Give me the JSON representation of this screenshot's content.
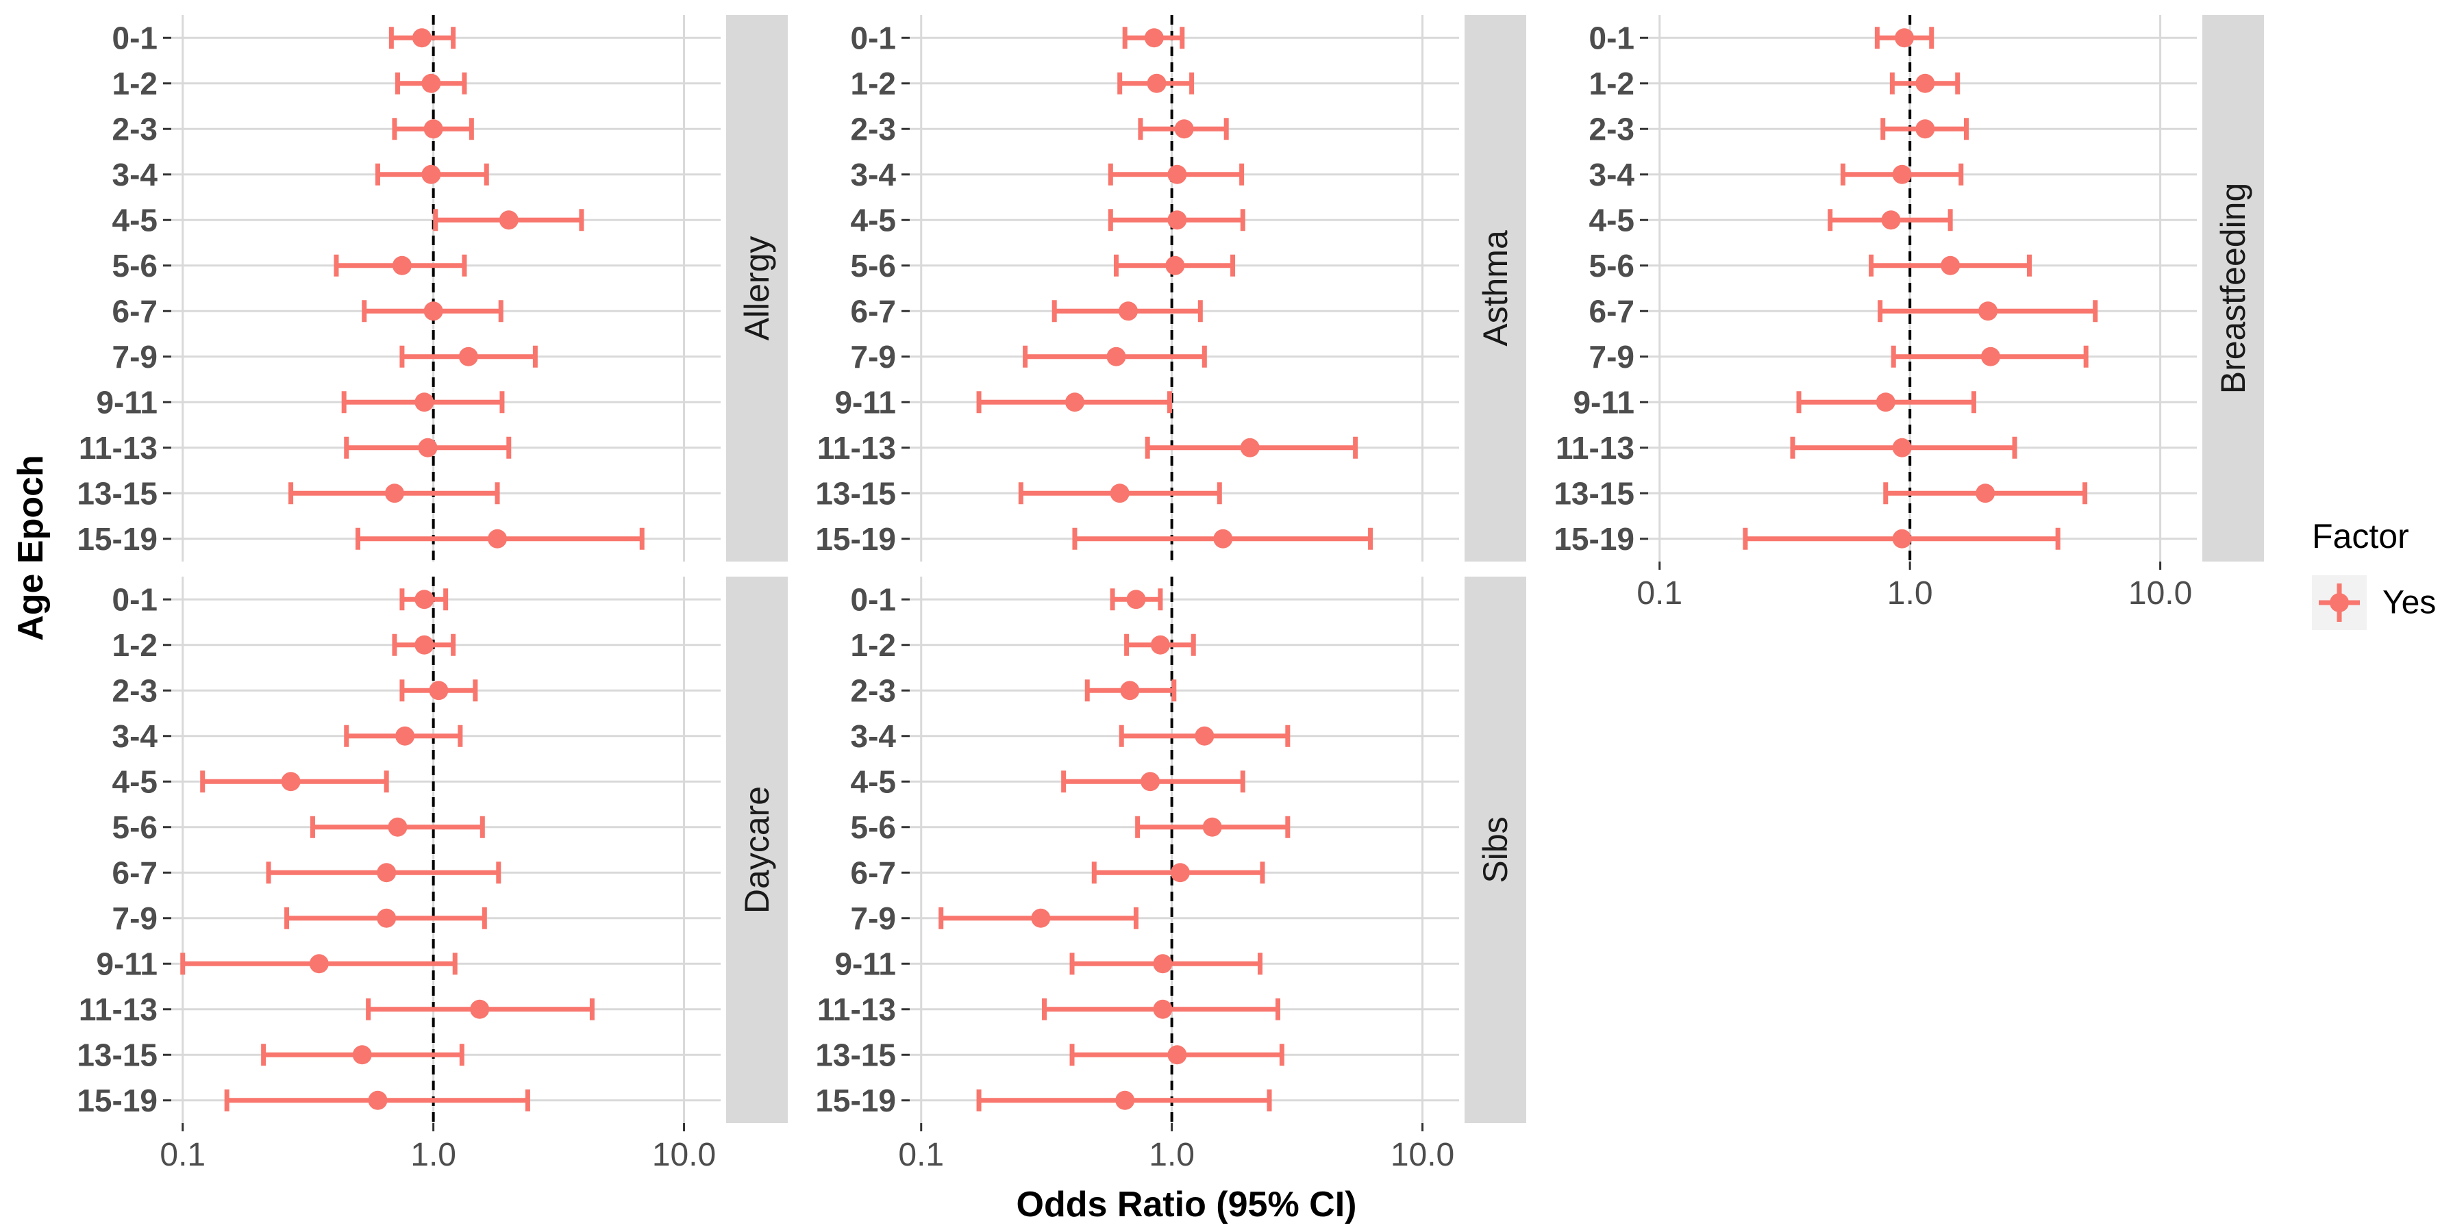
{
  "chart_data": {
    "type": "forest",
    "xlabel": "Odds Ratio (95% CI)",
    "ylabel": "Age Epoch",
    "x_scale": "log10",
    "xlim": [
      0.09,
      14
    ],
    "x_ticks": [
      0.1,
      1.0,
      10.0
    ],
    "x_tick_labels": [
      "0.1",
      "1.0",
      "10.0"
    ],
    "reference_line": 1.0,
    "categories": [
      "0-1",
      "1-2",
      "2-3",
      "3-4",
      "4-5",
      "5-6",
      "6-7",
      "7-9",
      "9-11",
      "11-13",
      "13-15",
      "15-19"
    ],
    "color": "#F8766D",
    "legend": {
      "title": "Factor",
      "items": [
        "Yes"
      ]
    },
    "panels": [
      {
        "name": "Allergy",
        "points": [
          {
            "est": 0.9,
            "lo": 0.68,
            "hi": 1.2
          },
          {
            "est": 0.98,
            "lo": 0.72,
            "hi": 1.33
          },
          {
            "est": 1.0,
            "lo": 0.7,
            "hi": 1.42
          },
          {
            "est": 0.98,
            "lo": 0.6,
            "hi": 1.63
          },
          {
            "est": 2.0,
            "lo": 1.02,
            "hi": 3.9
          },
          {
            "est": 0.75,
            "lo": 0.41,
            "hi": 1.33
          },
          {
            "est": 1.0,
            "lo": 0.53,
            "hi": 1.86
          },
          {
            "est": 1.38,
            "lo": 0.75,
            "hi": 2.55
          },
          {
            "est": 0.92,
            "lo": 0.44,
            "hi": 1.88
          },
          {
            "est": 0.95,
            "lo": 0.45,
            "hi": 2.0
          },
          {
            "est": 0.7,
            "lo": 0.27,
            "hi": 1.8
          },
          {
            "est": 1.8,
            "lo": 0.5,
            "hi": 6.8
          }
        ]
      },
      {
        "name": "Asthma",
        "points": [
          {
            "est": 0.85,
            "lo": 0.65,
            "hi": 1.1
          },
          {
            "est": 0.87,
            "lo": 0.62,
            "hi": 1.2
          },
          {
            "est": 1.12,
            "lo": 0.75,
            "hi": 1.65
          },
          {
            "est": 1.05,
            "lo": 0.57,
            "hi": 1.9
          },
          {
            "est": 1.05,
            "lo": 0.57,
            "hi": 1.92
          },
          {
            "est": 1.03,
            "lo": 0.6,
            "hi": 1.75
          },
          {
            "est": 0.67,
            "lo": 0.34,
            "hi": 1.3
          },
          {
            "est": 0.6,
            "lo": 0.26,
            "hi": 1.35
          },
          {
            "est": 0.41,
            "lo": 0.17,
            "hi": 0.98
          },
          {
            "est": 2.05,
            "lo": 0.8,
            "hi": 5.4
          },
          {
            "est": 0.62,
            "lo": 0.25,
            "hi": 1.55
          },
          {
            "est": 1.6,
            "lo": 0.41,
            "hi": 6.2
          }
        ]
      },
      {
        "name": "Breastfeeding",
        "points": [
          {
            "est": 0.95,
            "lo": 0.74,
            "hi": 1.22
          },
          {
            "est": 1.15,
            "lo": 0.85,
            "hi": 1.55
          },
          {
            "est": 1.15,
            "lo": 0.78,
            "hi": 1.68
          },
          {
            "est": 0.93,
            "lo": 0.54,
            "hi": 1.6
          },
          {
            "est": 0.84,
            "lo": 0.48,
            "hi": 1.45
          },
          {
            "est": 1.45,
            "lo": 0.7,
            "hi": 3.0
          },
          {
            "est": 2.05,
            "lo": 0.76,
            "hi": 5.5
          },
          {
            "est": 2.1,
            "lo": 0.86,
            "hi": 5.05
          },
          {
            "est": 0.8,
            "lo": 0.36,
            "hi": 1.8
          },
          {
            "est": 0.93,
            "lo": 0.34,
            "hi": 2.62
          },
          {
            "est": 2.0,
            "lo": 0.8,
            "hi": 5.0
          },
          {
            "est": 0.93,
            "lo": 0.22,
            "hi": 3.9
          }
        ]
      },
      {
        "name": "Daycare",
        "points": [
          {
            "est": 0.92,
            "lo": 0.75,
            "hi": 1.12
          },
          {
            "est": 0.92,
            "lo": 0.7,
            "hi": 1.2
          },
          {
            "est": 1.05,
            "lo": 0.75,
            "hi": 1.47
          },
          {
            "est": 0.77,
            "lo": 0.45,
            "hi": 1.28
          },
          {
            "est": 0.27,
            "lo": 0.12,
            "hi": 0.65
          },
          {
            "est": 0.72,
            "lo": 0.33,
            "hi": 1.57
          },
          {
            "est": 0.65,
            "lo": 0.22,
            "hi": 1.82
          },
          {
            "est": 0.65,
            "lo": 0.26,
            "hi": 1.6
          },
          {
            "est": 0.35,
            "lo": 0.1,
            "hi": 1.22
          },
          {
            "est": 1.53,
            "lo": 0.55,
            "hi": 4.3
          },
          {
            "est": 0.52,
            "lo": 0.21,
            "hi": 1.3
          },
          {
            "est": 0.6,
            "lo": 0.15,
            "hi": 2.38
          }
        ]
      },
      {
        "name": "Sibs",
        "points": [
          {
            "est": 0.72,
            "lo": 0.58,
            "hi": 0.9
          },
          {
            "est": 0.9,
            "lo": 0.66,
            "hi": 1.22
          },
          {
            "est": 0.68,
            "lo": 0.46,
            "hi": 1.02
          },
          {
            "est": 1.35,
            "lo": 0.63,
            "hi": 2.9
          },
          {
            "est": 0.82,
            "lo": 0.37,
            "hi": 1.92
          },
          {
            "est": 1.45,
            "lo": 0.73,
            "hi": 2.9
          },
          {
            "est": 1.08,
            "lo": 0.49,
            "hi": 2.3
          },
          {
            "est": 0.3,
            "lo": 0.12,
            "hi": 0.72
          },
          {
            "est": 0.92,
            "lo": 0.4,
            "hi": 2.25
          },
          {
            "est": 0.92,
            "lo": 0.31,
            "hi": 2.65
          },
          {
            "est": 1.05,
            "lo": 0.4,
            "hi": 2.75
          },
          {
            "est": 0.65,
            "lo": 0.17,
            "hi": 2.45
          }
        ]
      }
    ]
  }
}
